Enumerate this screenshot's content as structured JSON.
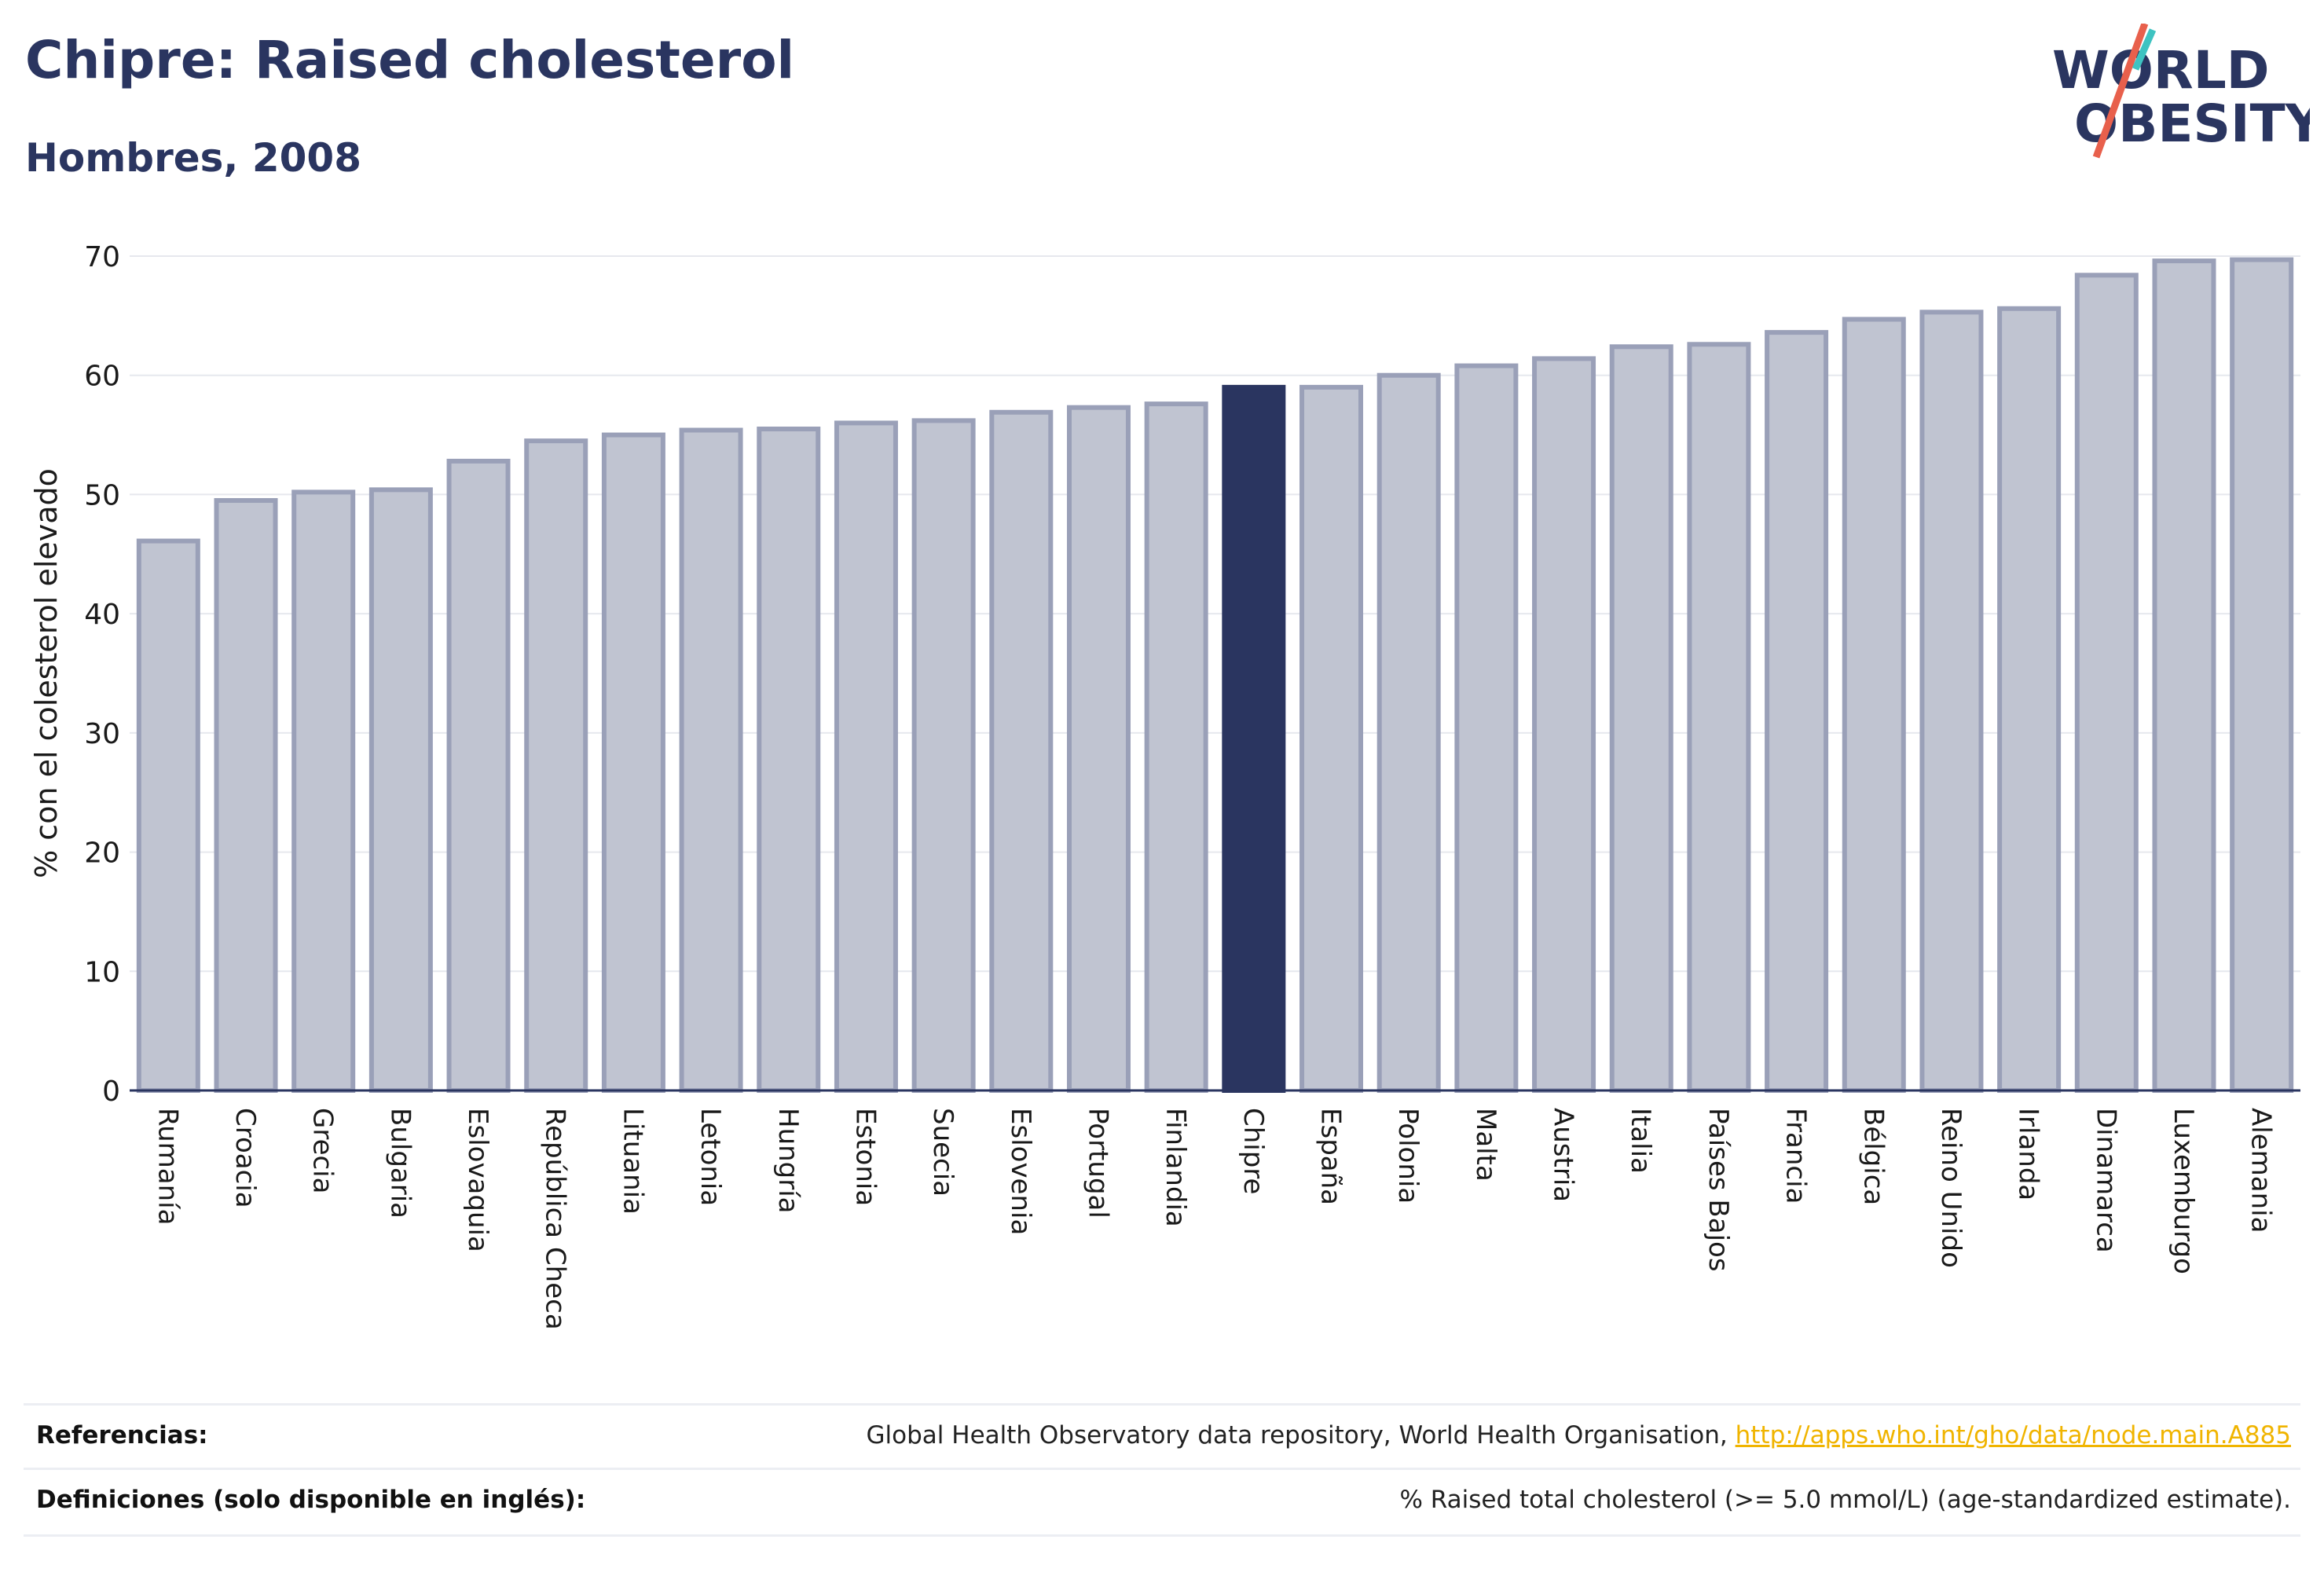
{
  "title": "Chipre: Raised cholesterol",
  "subtitle": "Hombres, 2008",
  "logo": {
    "line1": "WORLD",
    "line2": "OBESITY",
    "accent_teal": "#3ec3c1",
    "accent_red": "#e8604c"
  },
  "colors": {
    "bar": "#c0c4d1",
    "bar_border": "#9aa0b8",
    "highlight": "#2a3560",
    "grid": "#e6e8ee",
    "axis": "#2a3560"
  },
  "chart_data": {
    "type": "bar",
    "ylabel": "% con el colesterol elevado",
    "ylim": [
      0,
      70
    ],
    "yticks": [
      0,
      10,
      20,
      30,
      40,
      50,
      60,
      70
    ],
    "highlight": "Chipre",
    "categories": [
      "Rumanía",
      "Croacia",
      "Grecia",
      "Bulgaria",
      "Eslovaquia",
      "República Checa",
      "Lituania",
      "Letonia",
      "Hungría",
      "Estonia",
      "Suecia",
      "Eslovenia",
      "Portugal",
      "Finlandia",
      "Chipre",
      "España",
      "Polonia",
      "Malta",
      "Austria",
      "Italia",
      "Países Bajos",
      "Francia",
      "Bélgica",
      "Reino Unido",
      "Irlanda",
      "Dinamarca",
      "Luxemburgo",
      "Alemania"
    ],
    "values": [
      46.1,
      49.5,
      50.2,
      50.4,
      52.8,
      54.5,
      55.0,
      55.4,
      55.5,
      56.0,
      56.2,
      56.9,
      57.3,
      57.6,
      59.0,
      59.0,
      60.0,
      60.8,
      61.4,
      62.4,
      62.6,
      63.6,
      64.7,
      65.3,
      65.6,
      68.4,
      69.6,
      69.7
    ]
  },
  "footer": {
    "references_label": "Referencias:",
    "references_text": "Global Health Observatory data repository, World Health Organisation, ",
    "references_link": "http://apps.who.int/gho/data/node.main.A885",
    "definitions_label": "Definiciones (solo disponible en inglés):",
    "definitions_text": "% Raised total cholesterol (>= 5.0 mmol/L) (age-standardized estimate)."
  }
}
